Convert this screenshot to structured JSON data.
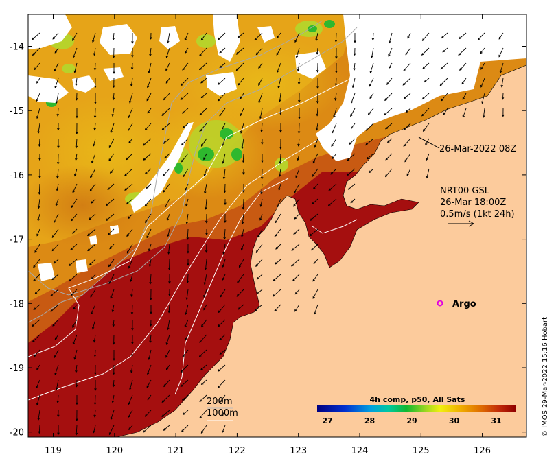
{
  "map": {
    "x_ticks": [
      "119",
      "120",
      "121",
      "122",
      "123",
      "124",
      "125",
      "126"
    ],
    "y_ticks": [
      "-14",
      "-15",
      "-16",
      "-17",
      "-18",
      "-19",
      "-20"
    ],
    "colors": {
      "land": "#FCCB9C",
      "cloud": "#FFFFFF",
      "sst_hot": "#A50F0F",
      "sst_warm": "#D06010",
      "sst_mid": "#E8A014",
      "sst_cool": "#B8D22A",
      "sst_cold": "#2EB82E",
      "argo_marker": "#E000E0"
    }
  },
  "annotations": {
    "timestamp": "26-Mar-2022 08Z",
    "current_source": "NRT00 GSL",
    "current_time": "26-Mar 18:00Z",
    "vector_scale": "0.5m/s (1kt 24h)",
    "argo": "Argo",
    "isobath_200": "200m",
    "isobath_1000": "1000m",
    "credit": "© IMOS 29-Mar-2022 15:16 Hobart"
  },
  "colorbar": {
    "title": "4h comp, p50, All Sats",
    "ticks": [
      "27",
      "28",
      "29",
      "30",
      "31"
    ]
  }
}
